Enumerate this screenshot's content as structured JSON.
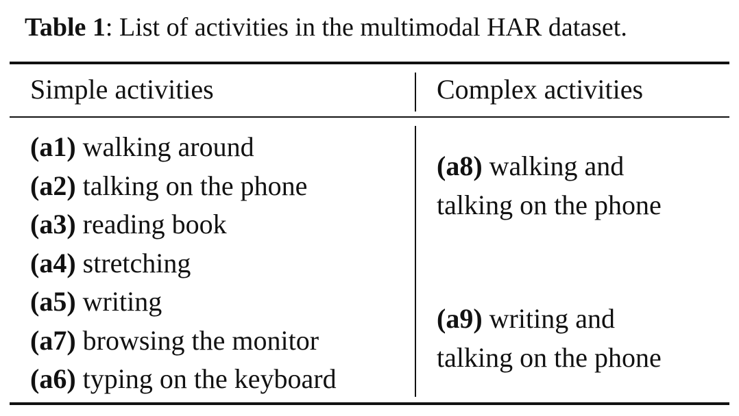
{
  "caption": {
    "label": "Table 1",
    "text": ": List of activities in the multimodal HAR dataset."
  },
  "table": {
    "headers": {
      "simple": "Simple activities",
      "complex": "Complex activities"
    },
    "simple_activities": [
      {
        "code": "(a1)",
        "text": " walking around"
      },
      {
        "code": "(a2)",
        "text": " talking on the phone"
      },
      {
        "code": "(a3)",
        "text": " reading book"
      },
      {
        "code": "(a4)",
        "text": " stretching"
      },
      {
        "code": "(a5)",
        "text": " writing"
      },
      {
        "code": "(a7)",
        "text": " browsing the monitor"
      },
      {
        "code": "(a6)",
        "text": " typing on the keyboard"
      }
    ],
    "complex_activities": [
      {
        "code": "(a8)",
        "line1": " walking and",
        "line2": "talking on the phone"
      },
      {
        "code": "(a9)",
        "line1": " writing and",
        "line2": "talking on the phone"
      }
    ]
  }
}
